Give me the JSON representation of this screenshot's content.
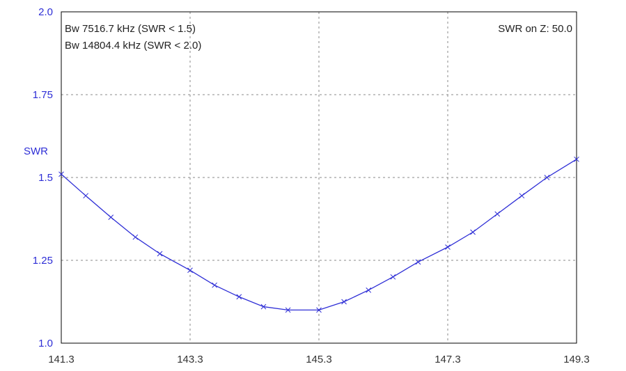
{
  "chart_data": {
    "type": "line",
    "ylabel": "SWR",
    "xlim": [
      141.3,
      149.3
    ],
    "ylim": [
      1.0,
      2.0
    ],
    "x_ticks": [
      "141.3",
      "143.3",
      "145.3",
      "147.3",
      "149.3"
    ],
    "y_ticks": [
      "1.0",
      "1.25",
      "1.5",
      "1.75",
      "2.0"
    ],
    "grid": true,
    "annotations": {
      "bw15": "Bw 7516.7 kHz (SWR < 1.5)",
      "bw20": "Bw 14804.4 kHz (SWR < 2.0)",
      "z0": "SWR on Z: 50.0"
    },
    "colors": {
      "line": "#2e2ed6",
      "grid": "#888888",
      "ylabels": "#2e2ed6"
    },
    "series": [
      {
        "x": [
          141.3,
          141.68,
          142.07,
          142.45,
          142.83,
          143.3,
          143.68,
          144.06,
          144.44,
          144.82,
          145.3,
          145.69,
          146.07,
          146.45,
          146.84,
          147.3,
          147.69,
          148.07,
          148.45,
          148.84,
          149.3
        ],
        "y": [
          1.51,
          1.445,
          1.38,
          1.32,
          1.27,
          1.22,
          1.175,
          1.14,
          1.11,
          1.1,
          1.1,
          1.125,
          1.16,
          1.2,
          1.245,
          1.29,
          1.335,
          1.39,
          1.445,
          1.5,
          1.555
        ]
      }
    ]
  }
}
